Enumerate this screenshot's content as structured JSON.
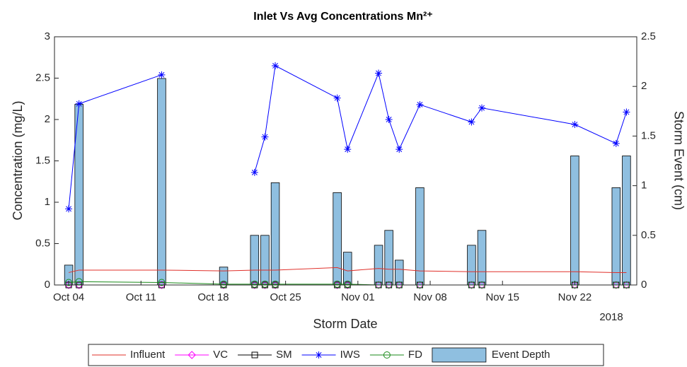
{
  "chart_data": {
    "type": "line",
    "title": "Inlet Vs Avg Concentrations Mn²⁺",
    "x_label": "Storm Date",
    "x_secondary_label": "2018",
    "y_label": "Concentration (mg/L)",
    "y2_label": "Storm Event (cm)",
    "x": [
      "2018-10-04",
      "2018-10-05",
      "2018-10-13",
      "2018-10-19",
      "2018-10-22",
      "2018-10-23",
      "2018-10-24",
      "2018-10-30",
      "2018-10-31",
      "2018-11-03",
      "2018-11-04",
      "2018-11-05",
      "2018-11-07",
      "2018-11-12",
      "2018-11-13",
      "2018-11-22",
      "2018-11-26",
      "2018-11-27"
    ],
    "xlim": [
      "2018-10-02T15:00",
      "2018-11-28"
    ],
    "xticks": [
      {
        "value": "2018-10-04",
        "label": "Oct 04"
      },
      {
        "value": "2018-10-11",
        "label": "Oct 11"
      },
      {
        "value": "2018-10-18",
        "label": "Oct 18"
      },
      {
        "value": "2018-10-25",
        "label": "Oct 25"
      },
      {
        "value": "2018-11-01",
        "label": "Nov 01"
      },
      {
        "value": "2018-11-08",
        "label": "Nov 08"
      },
      {
        "value": "2018-11-15",
        "label": "Nov 15"
      },
      {
        "value": "2018-11-22",
        "label": "Nov 22"
      }
    ],
    "ylim": [
      0,
      3
    ],
    "yticks": [
      0,
      0.5,
      1,
      1.5,
      2,
      2.5,
      3
    ],
    "y2lim": [
      0,
      2.5
    ],
    "y2ticks": [
      0,
      0.5,
      1,
      1.5,
      2,
      2.5
    ],
    "legend": "bottom",
    "series": [
      {
        "name": "Event Depth",
        "type": "bar",
        "axis": "y2",
        "color": "#8fbfe0",
        "values": [
          0.2,
          1.82,
          2.08,
          0.18,
          0.5,
          0.5,
          1.03,
          0.93,
          0.33,
          0.4,
          0.55,
          0.25,
          0.98,
          0.4,
          0.55,
          1.3,
          0.98,
          1.3
        ]
      },
      {
        "name": "Influent",
        "color": "#e0302a",
        "marker": "none",
        "values": [
          0.15,
          0.18,
          0.18,
          0.17,
          0.18,
          0.18,
          0.18,
          0.21,
          0.17,
          0.2,
          0.19,
          0.19,
          0.17,
          0.16,
          0.16,
          0.16,
          0.15,
          0.15
        ]
      },
      {
        "name": "VC",
        "color": "#ff00ff",
        "marker": "diamond",
        "values": [
          0,
          0,
          0,
          0,
          0,
          0,
          0,
          0,
          0,
          0,
          0,
          0,
          0,
          0,
          0,
          0,
          0,
          0
        ]
      },
      {
        "name": "SM",
        "color": "#000000",
        "marker": "square",
        "values": [
          0,
          0,
          0,
          0,
          0,
          0,
          0,
          0,
          0,
          0,
          0,
          0,
          0,
          0,
          0,
          0,
          0,
          0
        ]
      },
      {
        "name": "IWS",
        "color": "#0000ff",
        "marker": "star",
        "values": [
          0.92,
          2.19,
          2.54,
          null,
          1.36,
          1.79,
          2.65,
          2.26,
          1.64,
          2.56,
          2.0,
          1.64,
          2.18,
          1.97,
          2.14,
          1.94,
          1.71,
          2.09
        ]
      },
      {
        "name": "FD",
        "color": "#1a8a1a",
        "marker": "circle",
        "values": [
          0.03,
          0.04,
          0.03,
          0.01,
          0.01,
          0.01,
          0.01,
          0.01,
          0.01,
          0,
          0,
          0,
          0,
          0,
          0,
          0,
          0,
          0
        ]
      }
    ]
  }
}
